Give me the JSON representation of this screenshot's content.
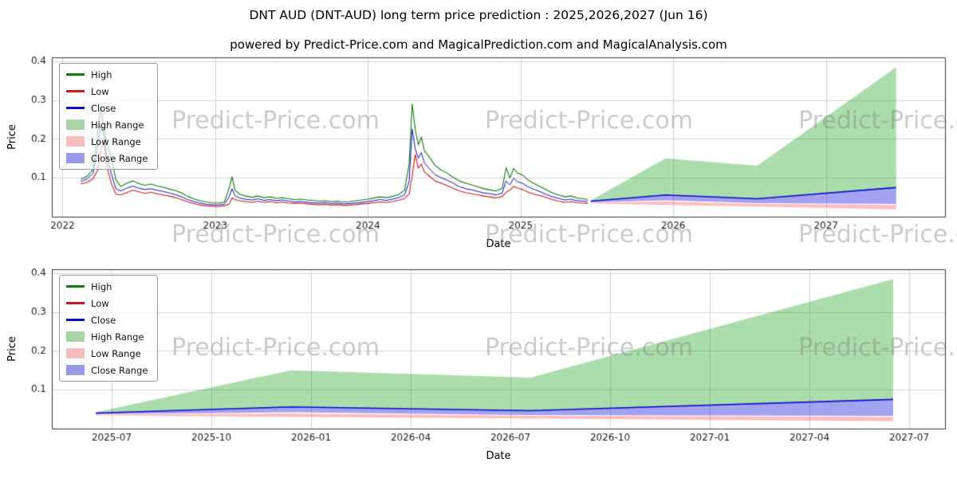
{
  "header": {
    "title": "DNT AUD (DNT-AUD) long term price prediction : 2025,2026,2027 (Jun 16)",
    "subtitle": "powered by Predict-Price.com and MagicalPrediction.com and MagicalAnalysis.com"
  },
  "watermark": {
    "text": "Predict-Price.com"
  },
  "colors": {
    "high": "#0a7d0a",
    "low": "#d01818",
    "close": "#0b0bcf",
    "high_range": "rgba(0,150,0,0.33)",
    "low_range": "rgba(255,80,80,0.38)",
    "close_range": "rgba(70,70,225,0.50)",
    "grid": "#d3d3d3",
    "spine": "#333333",
    "tick": "#1a1a1a"
  },
  "legend": {
    "items": [
      {
        "label": "High",
        "kind": "line",
        "color": "#0a7d0a"
      },
      {
        "label": "Low",
        "kind": "line",
        "color": "#d01818"
      },
      {
        "label": "Close",
        "kind": "line",
        "color": "#0b0bcf"
      },
      {
        "label": "High Range",
        "kind": "patch",
        "color": "#a8d4a8"
      },
      {
        "label": "Low Range",
        "kind": "patch",
        "color": "#f7bdbd"
      },
      {
        "label": "Close Range",
        "kind": "patch",
        "color": "#9a9ae6"
      }
    ]
  },
  "chart_data": [
    {
      "type": "line",
      "name": "historical-and-forecast",
      "xlabel": "Date",
      "ylabel": "Price",
      "grid": true,
      "legend_position": "upper left",
      "xlim": [
        2021.93,
        2027.78
      ],
      "ylim": [
        0,
        0.41
      ],
      "xticks": [
        {
          "v": 2022,
          "label": "2022"
        },
        {
          "v": 2023,
          "label": "2023"
        },
        {
          "v": 2024,
          "label": "2024"
        },
        {
          "v": 2025,
          "label": "2025"
        },
        {
          "v": 2026,
          "label": "2026"
        },
        {
          "v": 2027,
          "label": "2027"
        }
      ],
      "yticks": [
        {
          "v": 0.1,
          "label": "0.1"
        },
        {
          "v": 0.2,
          "label": "0.2"
        },
        {
          "v": 0.3,
          "label": "0.3"
        },
        {
          "v": 0.4,
          "label": "0.4"
        }
      ],
      "historical": {
        "x": [
          2022.12,
          2022.16,
          2022.2,
          2022.23,
          2022.25,
          2022.27,
          2022.29,
          2022.32,
          2022.35,
          2022.38,
          2022.42,
          2022.46,
          2022.5,
          2022.54,
          2022.58,
          2022.62,
          2022.66,
          2022.7,
          2022.74,
          2022.78,
          2022.82,
          2022.86,
          2022.9,
          2022.94,
          2022.98,
          2023.02,
          2023.06,
          2023.09,
          2023.11,
          2023.13,
          2023.16,
          2023.2,
          2023.24,
          2023.28,
          2023.32,
          2023.36,
          2023.4,
          2023.44,
          2023.48,
          2023.52,
          2023.56,
          2023.6,
          2023.64,
          2023.68,
          2023.72,
          2023.76,
          2023.8,
          2023.84,
          2023.88,
          2023.92,
          2023.96,
          2024.0,
          2024.04,
          2024.08,
          2024.12,
          2024.16,
          2024.2,
          2024.24,
          2024.27,
          2024.29,
          2024.31,
          2024.33,
          2024.35,
          2024.37,
          2024.4,
          2024.44,
          2024.48,
          2024.52,
          2024.56,
          2024.6,
          2024.64,
          2024.68,
          2024.72,
          2024.76,
          2024.8,
          2024.84,
          2024.88,
          2024.905,
          2024.93,
          2024.955,
          2024.98,
          2025.01,
          2025.05,
          2025.09,
          2025.13,
          2025.17,
          2025.21,
          2025.25,
          2025.29,
          2025.33,
          2025.37,
          2025.41,
          2025.44
        ],
        "high": [
          0.096,
          0.104,
          0.122,
          0.214,
          0.285,
          0.23,
          0.19,
          0.15,
          0.095,
          0.078,
          0.086,
          0.092,
          0.085,
          0.081,
          0.084,
          0.079,
          0.076,
          0.071,
          0.067,
          0.061,
          0.052,
          0.046,
          0.041,
          0.038,
          0.036,
          0.035,
          0.038,
          0.072,
          0.103,
          0.068,
          0.058,
          0.053,
          0.05,
          0.053,
          0.049,
          0.051,
          0.047,
          0.049,
          0.046,
          0.044,
          0.045,
          0.043,
          0.042,
          0.04,
          0.041,
          0.039,
          0.04,
          0.038,
          0.039,
          0.041,
          0.043,
          0.045,
          0.048,
          0.051,
          0.049,
          0.052,
          0.057,
          0.068,
          0.135,
          0.29,
          0.225,
          0.185,
          0.205,
          0.17,
          0.155,
          0.132,
          0.12,
          0.112,
          0.101,
          0.092,
          0.086,
          0.082,
          0.077,
          0.072,
          0.069,
          0.066,
          0.073,
          0.126,
          0.1,
          0.124,
          0.112,
          0.108,
          0.094,
          0.085,
          0.077,
          0.069,
          0.061,
          0.056,
          0.051,
          0.053,
          0.048,
          0.046,
          0.044
        ],
        "low": [
          0.084,
          0.088,
          0.098,
          0.12,
          0.17,
          0.195,
          0.13,
          0.085,
          0.058,
          0.056,
          0.062,
          0.068,
          0.064,
          0.06,
          0.063,
          0.059,
          0.056,
          0.053,
          0.049,
          0.044,
          0.038,
          0.034,
          0.03,
          0.028,
          0.027,
          0.026,
          0.028,
          0.032,
          0.048,
          0.044,
          0.041,
          0.039,
          0.037,
          0.04,
          0.037,
          0.039,
          0.036,
          0.038,
          0.035,
          0.034,
          0.035,
          0.033,
          0.032,
          0.031,
          0.032,
          0.03,
          0.031,
          0.029,
          0.03,
          0.031,
          0.033,
          0.034,
          0.036,
          0.038,
          0.037,
          0.039,
          0.042,
          0.047,
          0.058,
          0.105,
          0.16,
          0.125,
          0.135,
          0.115,
          0.105,
          0.092,
          0.086,
          0.08,
          0.073,
          0.066,
          0.062,
          0.059,
          0.056,
          0.053,
          0.051,
          0.048,
          0.052,
          0.063,
          0.068,
          0.078,
          0.074,
          0.07,
          0.063,
          0.058,
          0.054,
          0.049,
          0.044,
          0.04,
          0.037,
          0.039,
          0.036,
          0.035,
          0.034
        ],
        "close": [
          0.09,
          0.097,
          0.112,
          0.175,
          0.235,
          0.21,
          0.155,
          0.11,
          0.072,
          0.066,
          0.073,
          0.079,
          0.073,
          0.07,
          0.072,
          0.068,
          0.065,
          0.061,
          0.057,
          0.051,
          0.044,
          0.039,
          0.035,
          0.032,
          0.031,
          0.03,
          0.032,
          0.05,
          0.072,
          0.054,
          0.048,
          0.045,
          0.043,
          0.046,
          0.042,
          0.044,
          0.041,
          0.043,
          0.04,
          0.038,
          0.039,
          0.037,
          0.036,
          0.035,
          0.036,
          0.034,
          0.035,
          0.033,
          0.034,
          0.035,
          0.037,
          0.039,
          0.041,
          0.044,
          0.042,
          0.045,
          0.049,
          0.056,
          0.09,
          0.225,
          0.175,
          0.15,
          0.165,
          0.138,
          0.125,
          0.108,
          0.1,
          0.094,
          0.086,
          0.077,
          0.072,
          0.069,
          0.065,
          0.061,
          0.059,
          0.056,
          0.061,
          0.092,
          0.082,
          0.099,
          0.09,
          0.086,
          0.077,
          0.07,
          0.064,
          0.057,
          0.051,
          0.047,
          0.043,
          0.045,
          0.041,
          0.04,
          0.039
        ]
      },
      "forecast": {
        "x": [
          2025.46,
          2025.95,
          2026.55,
          2027.46
        ],
        "high_top": [
          0.042,
          0.15,
          0.131,
          0.385
        ],
        "close": [
          0.04,
          0.056,
          0.046,
          0.075
        ],
        "close_low": [
          0.037,
          0.042,
          0.035,
          0.033
        ],
        "low_top": [
          0.036,
          0.039,
          0.033,
          0.03
        ],
        "low_bottom": [
          0.034,
          0.03,
          0.026,
          0.019
        ]
      }
    },
    {
      "type": "line",
      "name": "forecast-detail",
      "xlabel": "Date",
      "ylabel": "Price",
      "grid": true,
      "legend_position": "upper left",
      "xlim": [
        2025.35,
        2027.59
      ],
      "ylim": [
        0,
        0.41
      ],
      "xticks": [
        {
          "v": 2025.5,
          "label": "2025-07"
        },
        {
          "v": 2025.75,
          "label": "2025-10"
        },
        {
          "v": 2026.0,
          "label": "2026-01"
        },
        {
          "v": 2026.25,
          "label": "2026-04"
        },
        {
          "v": 2026.5,
          "label": "2026-07"
        },
        {
          "v": 2026.75,
          "label": "2026-10"
        },
        {
          "v": 2027.0,
          "label": "2027-01"
        },
        {
          "v": 2027.25,
          "label": "2027-04"
        },
        {
          "v": 2027.5,
          "label": "2027-07"
        }
      ],
      "yticks": [
        {
          "v": 0.1,
          "label": "0.1"
        },
        {
          "v": 0.2,
          "label": "0.2"
        },
        {
          "v": 0.3,
          "label": "0.3"
        },
        {
          "v": 0.4,
          "label": "0.4"
        }
      ],
      "forecast": {
        "x": [
          2025.46,
          2025.95,
          2026.55,
          2027.46
        ],
        "high_top": [
          0.042,
          0.15,
          0.131,
          0.385
        ],
        "close": [
          0.04,
          0.056,
          0.046,
          0.075
        ],
        "close_low": [
          0.037,
          0.042,
          0.035,
          0.033
        ],
        "low_top": [
          0.036,
          0.039,
          0.033,
          0.03
        ],
        "low_bottom": [
          0.034,
          0.03,
          0.026,
          0.019
        ]
      }
    }
  ]
}
